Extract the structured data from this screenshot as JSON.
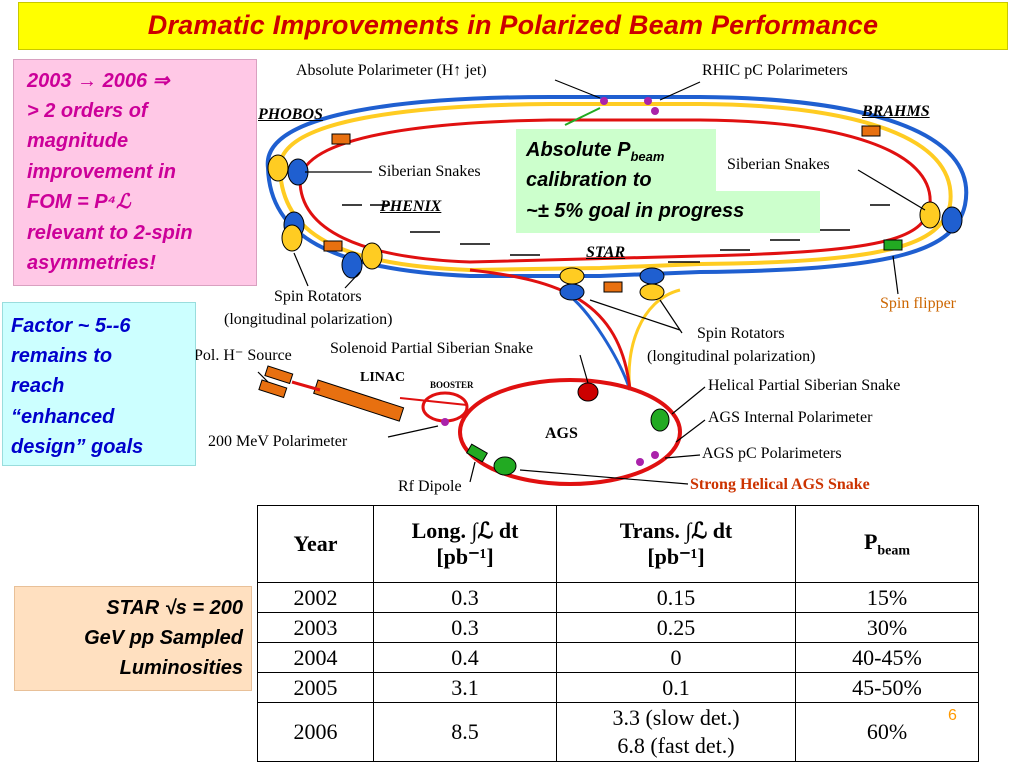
{
  "title": "Dramatic Improvements in Polarized Beam Performance",
  "pink_box": {
    "lines": [
      "2003 → 2006  ⇒",
      "> 2 orders of",
      "magnitude",
      "improvement in",
      "FOM = P⁴ℒ",
      "relevant to 2-spin",
      "asymmetries!"
    ]
  },
  "cyan_box": {
    "lines": [
      "Factor ~ 5--6",
      "remains to",
      "reach",
      "“enhanced",
      "design” goals"
    ]
  },
  "peach_box": {
    "lines": [
      "STAR √s = 200",
      "GeV pp Sampled",
      "Luminosities"
    ]
  },
  "green_box": {
    "line1": "Absolute P",
    "line1_sub": "beam",
    "line2": "calibration to",
    "line3": "~± 5% goal in progress"
  },
  "diagram_labels": {
    "absolute_polarimeter": "Absolute Polarimeter (H↑ jet)",
    "rhic_pc": "RHIC pC Polarimeters",
    "phobos": "PHOBOS",
    "brahms": "BRAHMS",
    "siberian_snakes_left": "Siberian Snakes",
    "siberian_snakes_right": "Siberian Snakes",
    "phenix": "PHENIX",
    "star": "STAR",
    "spin_flipper": "Spin flipper",
    "spin_rotators_left_1": "Spin Rotators",
    "spin_rotators_left_2": "(longitudinal polarization)",
    "spin_rotators_right_1": "Spin Rotators",
    "spin_rotators_right_2": "(longitudinal polarization)",
    "pol_source": "Pol. H⁻ Source",
    "solenoid_snake": "Solenoid Partial Siberian Snake",
    "linac": "LINAC",
    "booster": "BOOSTER",
    "helical_snake": "Helical Partial Siberian Snake",
    "ags_internal": "AGS Internal Polarimeter",
    "ags": "AGS",
    "mev_polarimeter": "200 MeV Polarimeter",
    "ags_pc": "AGS pC Polarimeters",
    "rf_dipole": "Rf Dipole",
    "strong_snake": "Strong Helical AGS Snake"
  },
  "table": {
    "headers": {
      "year": "Year",
      "long": "Long. ∫ℒ dt",
      "long_unit": "[pb⁻¹]",
      "trans": "Trans. ∫ℒ dt",
      "trans_unit": "[pb⁻¹]",
      "pbeam": "P",
      "pbeam_sub": "beam"
    },
    "rows": [
      {
        "year": "2002",
        "long": "0.3",
        "trans": "0.15",
        "pbeam": "15%"
      },
      {
        "year": "2003",
        "long": "0.3",
        "trans": "0.25",
        "pbeam": "30%"
      },
      {
        "year": "2004",
        "long": "0.4",
        "trans": "0",
        "pbeam": "40-45%"
      },
      {
        "year": "2005",
        "long": "3.1",
        "trans": "0.1",
        "pbeam": "45-50%"
      },
      {
        "year": "2006",
        "long": "8.5",
        "trans_1": "3.3 (slow det.)",
        "trans_2": "6.8 (fast det.)",
        "pbeam": "60%"
      }
    ]
  },
  "page_number": "6",
  "colors": {
    "title_bg": "#ffff00",
    "title_text": "#cc0000",
    "pink_bg": "#ffc8e6",
    "pink_text": "#cc0099",
    "cyan_bg": "#ccffff",
    "cyan_text": "#0000cc",
    "peach_bg": "#ffe0c0",
    "green_bg": "#ccffcc",
    "ring_blue": "#1f5fd0",
    "ring_yellow": "#ffcc22",
    "ring_red": "#e01010",
    "spin_flipper": "#cc6600",
    "strong_snake": "#cc3300"
  }
}
